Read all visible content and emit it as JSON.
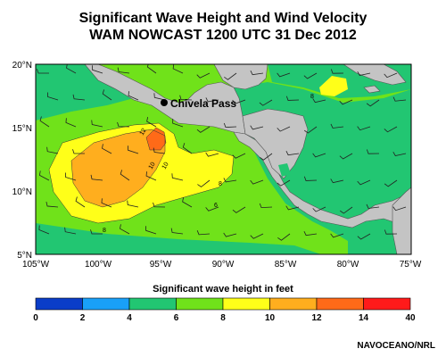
{
  "title": {
    "line1": "Significant Wave Height and Wind Velocity",
    "line2": "WAM NOWCAST 1200 UTC 31 Dec 2012"
  },
  "map": {
    "lat_labels": [
      "20°N",
      "15°N",
      "10°N",
      "5°N"
    ],
    "lon_labels": [
      "105°W",
      "100°W",
      "95°W",
      "90°W",
      "85°W",
      "80°W",
      "75°W"
    ],
    "annotation": "Chivela Pass",
    "contour_labels": [
      "12",
      "10",
      "8",
      "8",
      "8",
      "6",
      "10"
    ],
    "colors": {
      "land": "#c4c4c4",
      "sea_4_6": "#22c672",
      "sea_6_8": "#70e21a",
      "sea_8_10": "#ffff19",
      "sea_10_12": "#ffae1e",
      "sea_12_14": "#ff6a18"
    }
  },
  "colorbar": {
    "title": "Significant wave height in feet",
    "tick_labels": [
      "0",
      "2",
      "4",
      "6",
      "8",
      "10",
      "12",
      "14",
      "40"
    ],
    "colors": [
      "#0a3dc8",
      "#19a0f8",
      "#22c672",
      "#70e21a",
      "#ffff19",
      "#ffae1e",
      "#ff6a18",
      "#ff1a1a"
    ]
  },
  "credit": "NAVOCEANO/NRL"
}
